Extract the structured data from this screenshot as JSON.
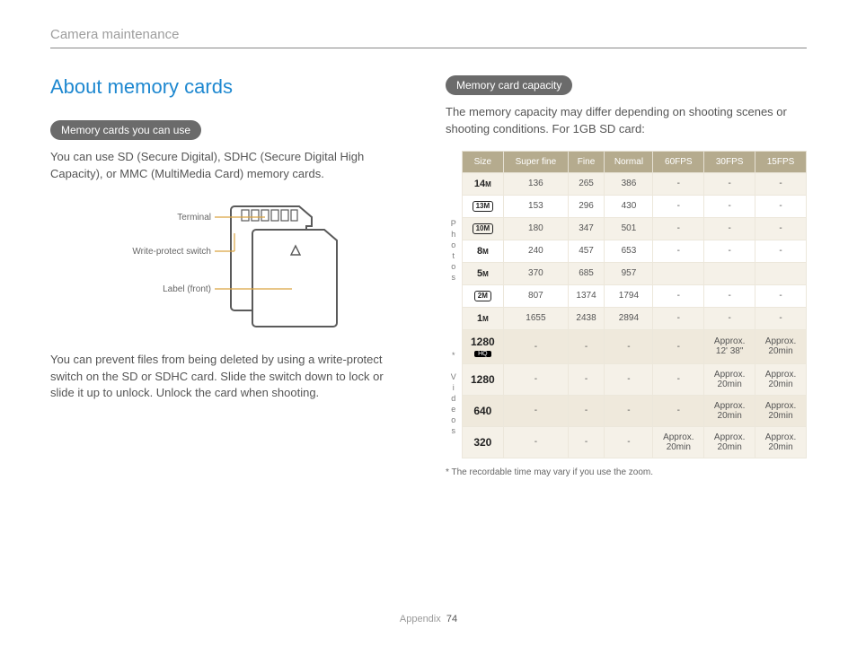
{
  "header": {
    "breadcrumb": "Camera maintenance"
  },
  "left": {
    "title": "About memory cards",
    "pill1": "Memory cards you can use",
    "para1": "You can use SD (Secure Digital), SDHC (Secure Digital High Capacity), or MMC (MultiMedia Card) memory cards.",
    "para2": "You can prevent files from being deleted by using a write-protect switch on the SD or SDHC card. Slide the switch down to lock or slide it up to unlock. Unlock the card when shooting.",
    "diagram": {
      "label_terminal": "Terminal",
      "label_wps": "Write-protect switch",
      "label_front": "Label (front)",
      "stroke": "#5a5a5a",
      "leader": "#d9a441"
    }
  },
  "right": {
    "pill2": "Memory card capacity",
    "intro": "The memory capacity may differ depending on shooting scenes or shooting conditions. For 1GB SD card:",
    "footnote": "* The recordable time may vary if you use the zoom.",
    "table": {
      "header_bg": "#b5ab8e",
      "alt_bg": "#f5f1e8",
      "columns": [
        "Size",
        "Super fine",
        "Fine",
        "Normal",
        "60FPS",
        "30FPS",
        "15FPS"
      ],
      "group_photos": "Photos",
      "group_videos": "* Videos",
      "photo_rows": [
        {
          "size_html": "14<span style='font-size:8px'>M</span>",
          "size_style": "icon",
          "vals": [
            "136",
            "265",
            "386",
            "-",
            "-",
            "-"
          ]
        },
        {
          "size_html": "13M",
          "size_style": "box",
          "vals": [
            "153",
            "296",
            "430",
            "-",
            "-",
            "-"
          ]
        },
        {
          "size_html": "10M",
          "size_style": "box",
          "vals": [
            "180",
            "347",
            "501",
            "-",
            "-",
            "-"
          ]
        },
        {
          "size_html": "8<span style='font-size:8px'>M</span>",
          "size_style": "icon",
          "vals": [
            "240",
            "457",
            "653",
            "-",
            "-",
            "-"
          ]
        },
        {
          "size_html": "5<span style='font-size:8px'>M</span>",
          "size_style": "icon",
          "vals": [
            "370",
            "685",
            "957",
            "",
            "",
            ""
          ]
        },
        {
          "size_html": "2M",
          "size_style": "box",
          "vals": [
            "807",
            "1374",
            "1794",
            "-",
            "-",
            "-"
          ]
        },
        {
          "size_html": "1<span style='font-size:8px'>M</span>",
          "size_style": "icon",
          "vals": [
            "1655",
            "2438",
            "2894",
            "-",
            "-",
            "-"
          ]
        }
      ],
      "video_rows": [
        {
          "size_html": "1280",
          "sub": "HQ",
          "vals": [
            "-",
            "-",
            "-",
            "-",
            "Approx. 12' 38\"",
            "Approx. 20min"
          ]
        },
        {
          "size_html": "1280",
          "vals": [
            "-",
            "-",
            "-",
            "-",
            "Approx. 20min",
            "Approx. 20min"
          ]
        },
        {
          "size_html": "640",
          "vals": [
            "-",
            "-",
            "-",
            "-",
            "Approx. 20min",
            "Approx. 20min"
          ]
        },
        {
          "size_html": "320",
          "vals": [
            "-",
            "-",
            "-",
            "Approx. 20min",
            "Approx. 20min",
            "Approx. 20min"
          ]
        }
      ]
    }
  },
  "footer": {
    "section": "Appendix",
    "page": "74"
  }
}
